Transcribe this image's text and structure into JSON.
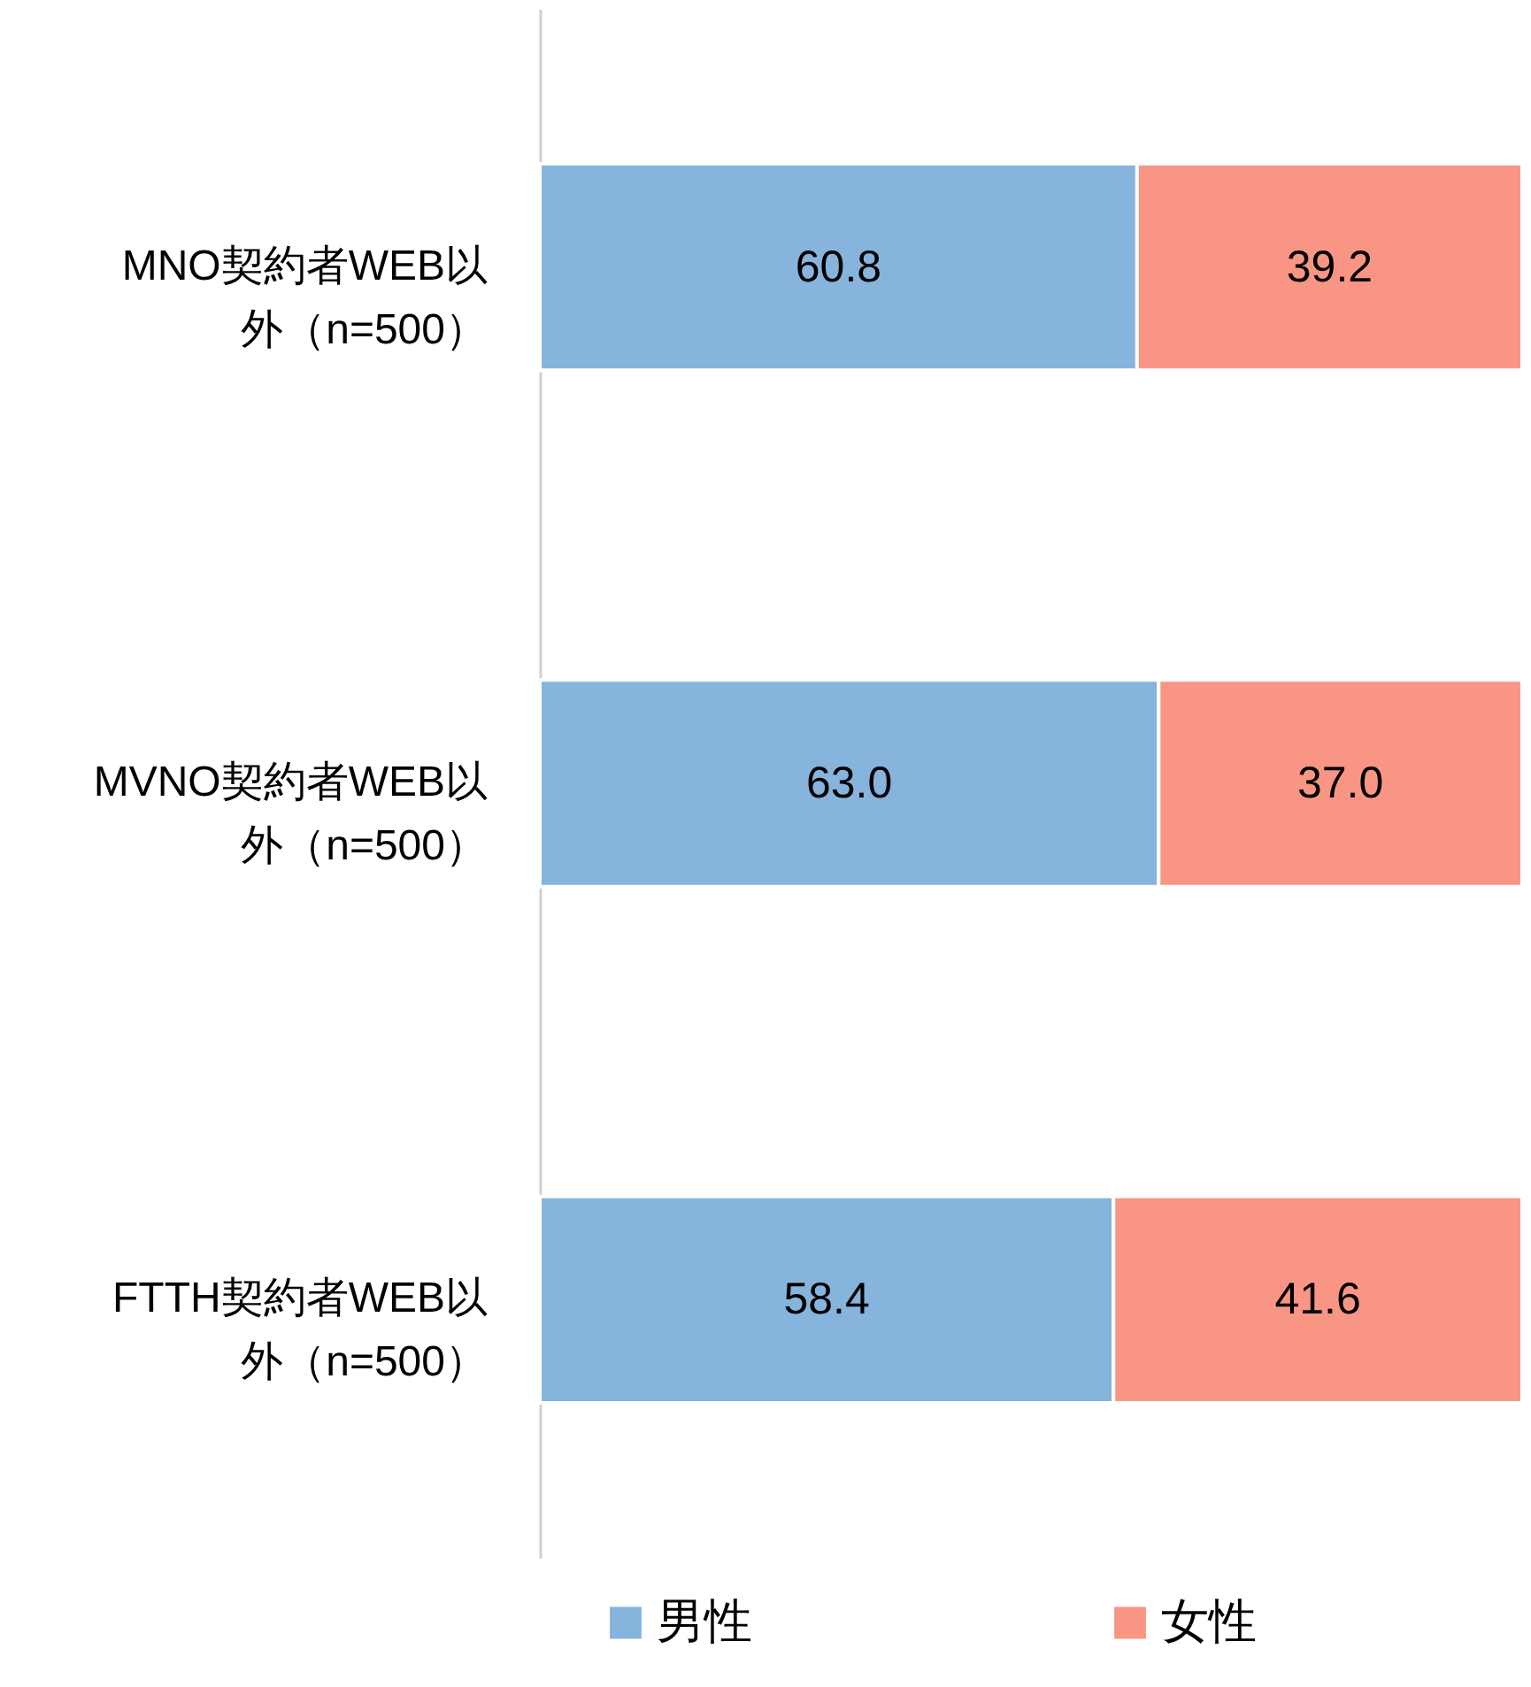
{
  "chart_data": {
    "type": "bar",
    "orientation": "horizontal",
    "stacked": true,
    "categories": [
      "MNO契約者WEB以外（n=500）",
      "MVNO契約者WEB以外（n=500）",
      "FTTH契約者WEB以外（n=500）"
    ],
    "series": [
      {
        "name": "男性",
        "color": "#86b4dc",
        "values": [
          60.8,
          63.0,
          58.4
        ],
        "value_labels": [
          "60.8",
          "63.0",
          "58.4"
        ]
      },
      {
        "name": "女性",
        "color": "#f99584",
        "values": [
          39.2,
          37.0,
          41.6
        ],
        "value_labels": [
          "39.2",
          "37.0",
          "41.6"
        ]
      }
    ],
    "xlim": [
      0,
      100
    ],
    "legend": "bottom",
    "grid": false,
    "tick_labels": "y"
  }
}
